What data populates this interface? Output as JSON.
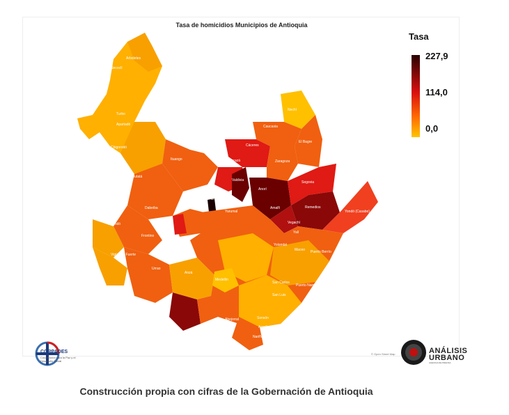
{
  "map": {
    "title": "Tasa de homicidios Municipios de Antioquia",
    "legend": {
      "title": "Tasa",
      "max": "227,9",
      "mid": "114,0",
      "min": "0,0"
    },
    "colors": {
      "dark": "#3a0000",
      "high": "#b01010",
      "red": "#e01a14",
      "orange": "#f06010",
      "amber": "#f8a000",
      "yellow": "#ffc000"
    },
    "municipalities": [
      "Arboletes",
      "Necoclí",
      "Turbo",
      "Apartadó",
      "Chigorodó",
      "Mutatá",
      "Ituango",
      "Nechí",
      "Caucasia",
      "Cáceres",
      "Tarazá",
      "El Bagre",
      "Zaragoza",
      "Valdivia",
      "Anorí",
      "Segovia",
      "Remedios",
      "Yondó (Casabe)",
      "Amalfi",
      "Briceño",
      "Yarumal",
      "Peque",
      "Dabeiba",
      "Frontino",
      "Murindó",
      "Vigía Del Fuerte",
      "Urrao",
      "Vegachí",
      "Yalí",
      "Yolombó",
      "Maceo",
      "Puerto Berrío",
      "Anzá",
      "Medellín",
      "San Carlos",
      "Puerto Nare",
      "San Luis",
      "Abejorral",
      "Sonsón",
      "Argelia",
      "Nariño"
    ]
  },
  "credit": "© Open Street Map",
  "logos": {
    "left_name": "CORPADES",
    "left_sub": "Corporación para la Paz y el Desarrollo Social",
    "right_line1": "ANÁLISIS",
    "right_line2": "URBANO",
    "right_sub": "AGENCIA DE PRENSA"
  },
  "caption": "Construcción propia con cifras de la Gobernación de Antioquia"
}
